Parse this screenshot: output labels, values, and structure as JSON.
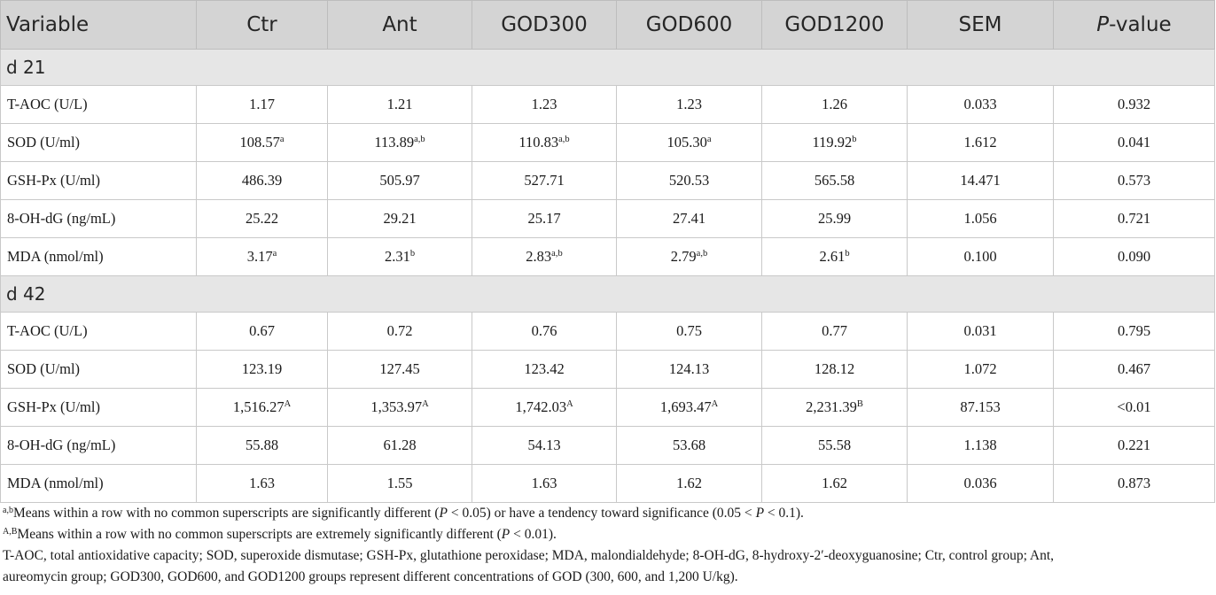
{
  "header": [
    "Variable",
    "Ctr",
    "Ant",
    "GOD300",
    "GOD600",
    "GOD1200",
    "SEM",
    "P-value"
  ],
  "sections": [
    {
      "label": "d 21",
      "rows": [
        {
          "variable": "T-AOC (U/L)",
          "cells": [
            {
              "v": "1.17",
              "s": ""
            },
            {
              "v": "1.21",
              "s": ""
            },
            {
              "v": "1.23",
              "s": ""
            },
            {
              "v": "1.23",
              "s": ""
            },
            {
              "v": "1.26",
              "s": ""
            }
          ],
          "sem": "0.033",
          "p": "0.932"
        },
        {
          "variable": "SOD (U/ml)",
          "cells": [
            {
              "v": "108.57",
              "s": "a"
            },
            {
              "v": "113.89",
              "s": "a,b"
            },
            {
              "v": "110.83",
              "s": "a,b"
            },
            {
              "v": "105.30",
              "s": "a"
            },
            {
              "v": "119.92",
              "s": "b"
            }
          ],
          "sem": "1.612",
          "p": "0.041"
        },
        {
          "variable": "GSH-Px (U/ml)",
          "cells": [
            {
              "v": "486.39",
              "s": ""
            },
            {
              "v": "505.97",
              "s": ""
            },
            {
              "v": "527.71",
              "s": ""
            },
            {
              "v": "520.53",
              "s": ""
            },
            {
              "v": "565.58",
              "s": ""
            }
          ],
          "sem": "14.471",
          "p": "0.573"
        },
        {
          "variable": "8-OH-dG (ng/mL)",
          "cells": [
            {
              "v": "25.22",
              "s": ""
            },
            {
              "v": "29.21",
              "s": ""
            },
            {
              "v": "25.17",
              "s": ""
            },
            {
              "v": "27.41",
              "s": ""
            },
            {
              "v": "25.99",
              "s": ""
            }
          ],
          "sem": "1.056",
          "p": "0.721"
        },
        {
          "variable": "MDA (nmol/ml)",
          "cells": [
            {
              "v": "3.17",
              "s": "a"
            },
            {
              "v": "2.31",
              "s": "b"
            },
            {
              "v": "2.83",
              "s": "a,b"
            },
            {
              "v": "2.79",
              "s": "a,b"
            },
            {
              "v": "2.61",
              "s": "b"
            }
          ],
          "sem": "0.100",
          "p": "0.090"
        }
      ]
    },
    {
      "label": "d 42",
      "rows": [
        {
          "variable": "T-AOC (U/L)",
          "cells": [
            {
              "v": "0.67",
              "s": ""
            },
            {
              "v": "0.72",
              "s": ""
            },
            {
              "v": "0.76",
              "s": ""
            },
            {
              "v": "0.75",
              "s": ""
            },
            {
              "v": "0.77",
              "s": ""
            }
          ],
          "sem": "0.031",
          "p": "0.795"
        },
        {
          "variable": "SOD (U/ml)",
          "cells": [
            {
              "v": "123.19",
              "s": ""
            },
            {
              "v": "127.45",
              "s": ""
            },
            {
              "v": "123.42",
              "s": ""
            },
            {
              "v": "124.13",
              "s": ""
            },
            {
              "v": "128.12",
              "s": ""
            }
          ],
          "sem": "1.072",
          "p": "0.467"
        },
        {
          "variable": "GSH-Px (U/ml)",
          "cells": [
            {
              "v": "1,516.27",
              "s": "A"
            },
            {
              "v": "1,353.97",
              "s": "A"
            },
            {
              "v": "1,742.03",
              "s": "A"
            },
            {
              "v": "1,693.47",
              "s": "A"
            },
            {
              "v": "2,231.39",
              "s": "B"
            }
          ],
          "sem": "87.153",
          "p": "<0.01"
        },
        {
          "variable": "8-OH-dG (ng/mL)",
          "cells": [
            {
              "v": "55.88",
              "s": ""
            },
            {
              "v": "61.28",
              "s": ""
            },
            {
              "v": "54.13",
              "s": ""
            },
            {
              "v": "53.68",
              "s": ""
            },
            {
              "v": "55.58",
              "s": ""
            }
          ],
          "sem": "1.138",
          "p": "0.221"
        },
        {
          "variable": "MDA (nmol/ml)",
          "cells": [
            {
              "v": "1.63",
              "s": ""
            },
            {
              "v": "1.55",
              "s": ""
            },
            {
              "v": "1.63",
              "s": ""
            },
            {
              "v": "1.62",
              "s": ""
            },
            {
              "v": "1.62",
              "s": ""
            }
          ],
          "sem": "0.036",
          "p": "0.873"
        }
      ]
    }
  ],
  "footnotes": [
    {
      "sup": "a,b",
      "segments": [
        {
          "t": "Means within a row with no common superscripts are significantly different (",
          "i": false
        },
        {
          "t": "P",
          "i": true
        },
        {
          "t": " < 0.05) or have a tendency toward significance (0.05 < ",
          "i": false
        },
        {
          "t": "P",
          "i": true
        },
        {
          "t": " < 0.1).",
          "i": false
        }
      ]
    },
    {
      "sup": "A,B",
      "segments": [
        {
          "t": "Means within a row with no common superscripts are extremely significantly different (",
          "i": false
        },
        {
          "t": "P",
          "i": true
        },
        {
          "t": " < 0.01).",
          "i": false
        }
      ]
    }
  ],
  "abbreviations_line1": "T-AOC, total antioxidative capacity; SOD, superoxide dismutase; GSH-Px, glutathione peroxidase; MDA, malondialdehyde; 8-OH-dG, 8-hydroxy-2′-deoxyguanosine; Ctr, control group; Ant,",
  "abbreviations_line2": "aureomycin group; GOD300, GOD600, and GOD1200 groups represent different concentrations of GOD (300, 600, and 1,200 U/kg)."
}
